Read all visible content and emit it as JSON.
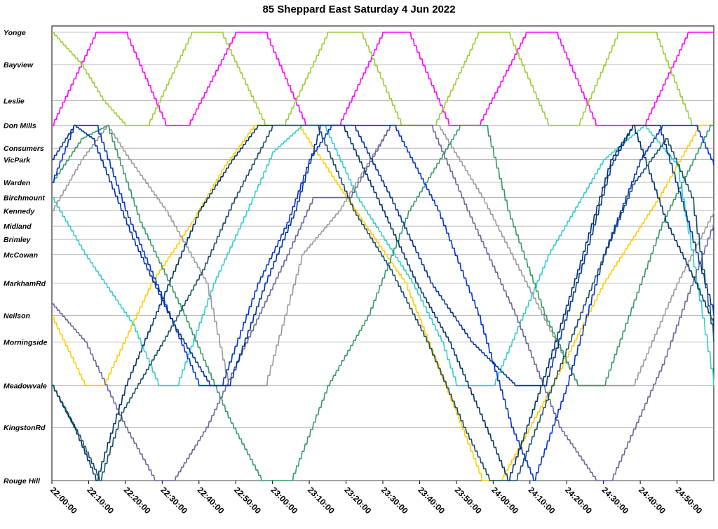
{
  "chart_data": {
    "type": "line",
    "title": "85 Sheppard East Saturday 4 Jun 2022",
    "x_tick_labels": [
      "22:00:00",
      "22:10:00",
      "22:20:00",
      "22:30:00",
      "22:40:00",
      "22:50:00",
      "23:00:00",
      "23:10:00",
      "23:20:00",
      "23:30:00",
      "23:40:00",
      "23:50:00",
      "24:00:00",
      "24:10:00",
      "24:20:00",
      "24:30:00",
      "24:40:00",
      "24:50:00"
    ],
    "xlim": [
      0,
      180
    ],
    "x_unit": "minutes after 22:00:00",
    "stops": [
      {
        "name": "Yonge",
        "km": 0.0
      },
      {
        "name": "Bayview",
        "km": 1.7
      },
      {
        "name": "Leslie",
        "km": 3.6
      },
      {
        "name": "Don Mills",
        "km": 4.9
      },
      {
        "name": "Consumers",
        "km": 6.1
      },
      {
        "name": "VicPark",
        "km": 6.7
      },
      {
        "name": "Warden",
        "km": 7.9
      },
      {
        "name": "Birchmount",
        "km": 8.7
      },
      {
        "name": "Kennedy",
        "km": 9.4
      },
      {
        "name": "Midland",
        "km": 10.2
      },
      {
        "name": "Brimley",
        "km": 10.9
      },
      {
        "name": "McCowan",
        "km": 11.7
      },
      {
        "name": "MarkhamRd",
        "km": 13.2
      },
      {
        "name": "Neilson",
        "km": 14.9
      },
      {
        "name": "Morningside",
        "km": 16.3
      },
      {
        "name": "Meadowvale",
        "km": 18.6
      },
      {
        "name": "KingstonRd",
        "km": 20.8
      },
      {
        "name": "Rouge Hill",
        "km": 23.6
      }
    ],
    "ylim": [
      0,
      23.6
    ],
    "y_unit": "km from Yonge",
    "grid": true,
    "series": [
      {
        "color": "#ff00ff",
        "points": [
          [
            0,
            4.9
          ],
          [
            12,
            0
          ],
          [
            20,
            0
          ],
          [
            31,
            4.9
          ],
          [
            37,
            4.9
          ],
          [
            50,
            0
          ],
          [
            58,
            0
          ],
          [
            69,
            4.9
          ],
          [
            78,
            4.9
          ],
          [
            90,
            0
          ],
          [
            97,
            0
          ],
          [
            108,
            4.9
          ],
          [
            116,
            4.9
          ],
          [
            129,
            0
          ],
          [
            137,
            0
          ],
          [
            148,
            4.9
          ],
          [
            161,
            4.9
          ],
          [
            173,
            0
          ],
          [
            180,
            0
          ]
        ]
      },
      {
        "color": "#99cc33",
        "points": [
          [
            0,
            0
          ],
          [
            8,
            1.7
          ],
          [
            14,
            3.6
          ],
          [
            20,
            4.9
          ],
          [
            26,
            4.9
          ],
          [
            38,
            0
          ],
          [
            46,
            0
          ],
          [
            58,
            4.9
          ],
          [
            63,
            4.9
          ],
          [
            75,
            0
          ],
          [
            84,
            0
          ],
          [
            95,
            4.9
          ],
          [
            104,
            4.9
          ],
          [
            116,
            0
          ],
          [
            124,
            0
          ],
          [
            135,
            4.9
          ],
          [
            143,
            4.9
          ],
          [
            154,
            0
          ],
          [
            164,
            0
          ],
          [
            174,
            4.9
          ],
          [
            180,
            4.9
          ]
        ]
      },
      {
        "color": "#ffcc00",
        "points": [
          [
            0,
            15.0
          ],
          [
            9,
            18.6
          ],
          [
            14,
            18.6
          ],
          [
            27,
            13.2
          ],
          [
            38,
            10.0
          ],
          [
            47,
            7.0
          ],
          [
            55,
            4.9
          ],
          [
            67,
            4.9
          ],
          [
            80,
            8.7
          ],
          [
            96,
            13.2
          ],
          [
            107,
            18.6
          ],
          [
            117,
            23.6
          ],
          [
            122,
            23.6
          ],
          [
            136,
            18.6
          ],
          [
            150,
            13.2
          ],
          [
            165,
            8.7
          ],
          [
            176,
            4.9
          ],
          [
            180,
            4.9
          ]
        ]
      },
      {
        "color": "#33cccc",
        "points": [
          [
            0,
            8.7
          ],
          [
            9,
            11.7
          ],
          [
            22,
            15.4
          ],
          [
            29,
            18.6
          ],
          [
            34,
            18.6
          ],
          [
            44,
            13.2
          ],
          [
            53,
            9.4
          ],
          [
            60,
            6.3
          ],
          [
            68,
            4.9
          ],
          [
            74,
            4.9
          ],
          [
            83,
            8.7
          ],
          [
            98,
            13.2
          ],
          [
            106,
            16.3
          ],
          [
            110,
            18.6
          ],
          [
            120,
            18.6
          ],
          [
            135,
            11.7
          ],
          [
            150,
            6.7
          ],
          [
            161,
            4.9
          ],
          [
            170,
            7.0
          ],
          [
            180,
            18.6
          ]
        ]
      },
      {
        "color": "#999999",
        "points": [
          [
            0,
            9.4
          ],
          [
            8,
            6.7
          ],
          [
            15,
            4.9
          ],
          [
            21,
            6.7
          ],
          [
            31,
            9.4
          ],
          [
            42,
            13.2
          ],
          [
            48,
            18.6
          ],
          [
            58,
            18.6
          ],
          [
            68,
            11.7
          ],
          [
            78,
            9.4
          ],
          [
            92,
            4.9
          ],
          [
            105,
            4.9
          ],
          [
            117,
            8.7
          ],
          [
            131,
            14.0
          ],
          [
            143,
            18.6
          ],
          [
            158,
            18.6
          ],
          [
            170,
            13.2
          ],
          [
            180,
            9.4
          ]
        ]
      },
      {
        "color": "#339966",
        "points": [
          [
            0,
            7.9
          ],
          [
            8,
            5.6
          ],
          [
            15,
            4.9
          ],
          [
            24,
            10.0
          ],
          [
            36,
            14.9
          ],
          [
            48,
            20.3
          ],
          [
            57,
            23.6
          ],
          [
            65,
            23.6
          ],
          [
            75,
            18.6
          ],
          [
            86,
            14.9
          ],
          [
            97,
            9.4
          ],
          [
            111,
            4.9
          ],
          [
            118,
            4.9
          ],
          [
            124,
            9.4
          ],
          [
            134,
            14.9
          ],
          [
            143,
            18.6
          ],
          [
            150,
            18.6
          ],
          [
            166,
            10.0
          ],
          [
            179,
            4.9
          ],
          [
            180,
            4.9
          ]
        ]
      },
      {
        "color": "#666699",
        "points": [
          [
            0,
            14.3
          ],
          [
            9,
            16.3
          ],
          [
            20,
            20.8
          ],
          [
            28,
            23.6
          ],
          [
            33,
            23.6
          ],
          [
            42,
            20.8
          ],
          [
            55,
            15.4
          ],
          [
            64,
            11.7
          ],
          [
            71,
            8.7
          ],
          [
            81,
            8.7
          ],
          [
            92,
            4.9
          ],
          [
            103,
            4.9
          ],
          [
            113,
            9.4
          ],
          [
            126,
            14.9
          ],
          [
            138,
            20.8
          ],
          [
            148,
            23.6
          ],
          [
            152,
            23.6
          ],
          [
            166,
            17.5
          ],
          [
            180,
            10.0
          ]
        ]
      },
      {
        "color": "#0033cc",
        "points": [
          [
            0,
            7.9
          ],
          [
            6,
            4.9
          ],
          [
            12,
            4.9
          ],
          [
            20,
            9.4
          ],
          [
            30,
            14.0
          ],
          [
            40,
            18.6
          ],
          [
            46,
            18.6
          ],
          [
            56,
            13.2
          ],
          [
            64,
            10.0
          ],
          [
            70,
            6.7
          ],
          [
            76,
            4.9
          ],
          [
            93,
            4.9
          ],
          [
            105,
            9.4
          ],
          [
            116,
            14.9
          ],
          [
            125,
            20.8
          ],
          [
            131,
            23.6
          ],
          [
            140,
            18.6
          ],
          [
            150,
            11.7
          ],
          [
            160,
            6.7
          ],
          [
            166,
            4.9
          ],
          [
            175,
            4.9
          ],
          [
            180,
            7.0
          ]
        ]
      },
      {
        "color": "#003399",
        "points": [
          [
            0,
            6.7
          ],
          [
            6,
            4.9
          ],
          [
            11,
            5.6
          ],
          [
            22,
            10.9
          ],
          [
            33,
            15.4
          ],
          [
            43,
            18.6
          ],
          [
            48,
            18.6
          ],
          [
            58,
            13.2
          ],
          [
            66,
            9.4
          ],
          [
            73,
            4.9
          ],
          [
            82,
            4.9
          ],
          [
            92,
            8.7
          ],
          [
            103,
            13.2
          ],
          [
            114,
            16.3
          ],
          [
            126,
            18.6
          ],
          [
            134,
            18.6
          ],
          [
            145,
            11.7
          ],
          [
            152,
            7.0
          ],
          [
            158,
            4.9
          ],
          [
            165,
            4.9
          ],
          [
            172,
            9.4
          ],
          [
            180,
            14.9
          ]
        ]
      },
      {
        "color": "#003366",
        "points": [
          [
            0,
            18.6
          ],
          [
            6,
            20.8
          ],
          [
            12,
            23.6
          ],
          [
            20,
            18.6
          ],
          [
            30,
            14.0
          ],
          [
            40,
            9.4
          ],
          [
            49,
            6.7
          ],
          [
            56,
            4.9
          ],
          [
            79,
            4.9
          ],
          [
            90,
            9.4
          ],
          [
            99,
            13.2
          ],
          [
            108,
            16.3
          ],
          [
            118,
            20.8
          ],
          [
            124,
            23.6
          ],
          [
            133,
            18.6
          ],
          [
            143,
            12.5
          ],
          [
            152,
            6.7
          ],
          [
            158,
            4.9
          ],
          [
            167,
            10.0
          ],
          [
            175,
            13.2
          ],
          [
            180,
            15.4
          ]
        ]
      },
      {
        "color": "#1a4d66",
        "points": [
          [
            0,
            18.6
          ],
          [
            8,
            21.5
          ],
          [
            13,
            23.6
          ],
          [
            19,
            20.0
          ],
          [
            31,
            16.0
          ],
          [
            41,
            12.5
          ],
          [
            49,
            9.0
          ],
          [
            60,
            4.9
          ],
          [
            72,
            4.9
          ],
          [
            82,
            9.4
          ],
          [
            92,
            12.5
          ],
          [
            102,
            16.3
          ],
          [
            112,
            20.8
          ],
          [
            119,
            23.6
          ],
          [
            126,
            23.6
          ],
          [
            136,
            18.6
          ],
          [
            147,
            13.2
          ],
          [
            158,
            8.0
          ],
          [
            167,
            5.6
          ],
          [
            174,
            8.7
          ],
          [
            180,
            16.3
          ]
        ]
      }
    ]
  }
}
